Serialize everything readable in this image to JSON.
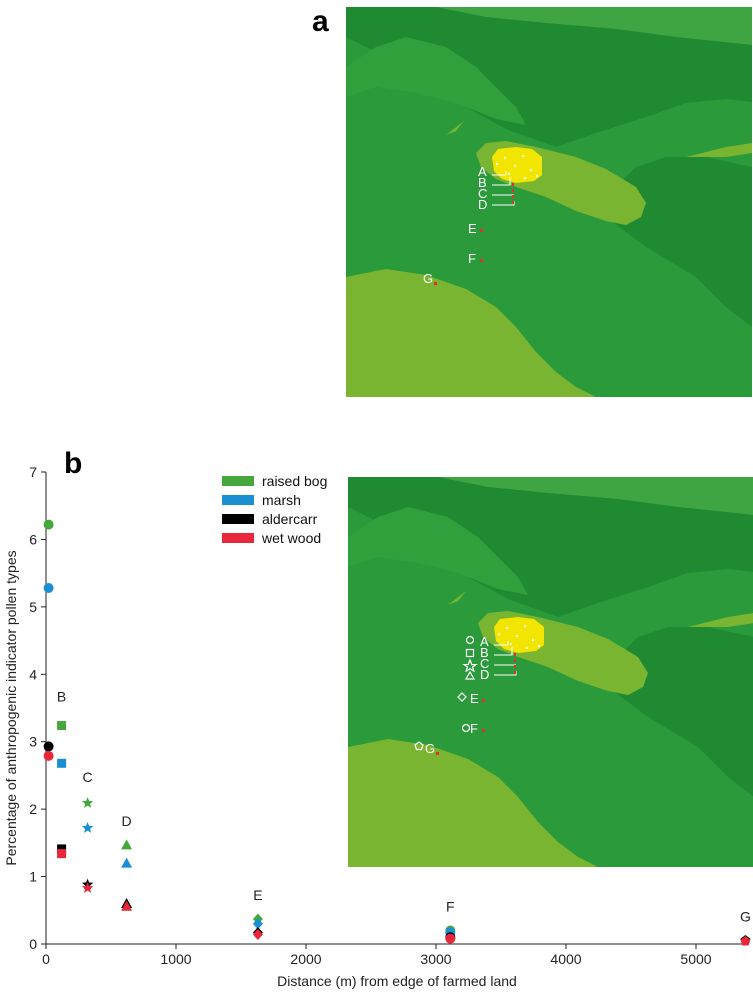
{
  "panels": {
    "a": "a",
    "b": "b"
  },
  "map": {
    "colors": {
      "background": "#2a9a3a",
      "dark": "#1f8a32",
      "light": "#7ab532",
      "mid": "#3fa542",
      "yellow": "#f2e600",
      "dot": "#e53030"
    },
    "site_labels": [
      "A",
      "B",
      "C",
      "D",
      "E",
      "F",
      "G"
    ]
  },
  "chart_data": {
    "type": "scatter",
    "xlabel": "Distance (m) from edge of farmed land",
    "ylabel": "Percentage of anthropogenic indicator pollen types",
    "xlim": [
      0,
      5400
    ],
    "ylim": [
      0,
      7
    ],
    "x_ticks": [
      "0",
      "1000",
      "2000",
      "3000",
      "4000",
      "5000"
    ],
    "y_ticks": [
      "0",
      "1",
      "2",
      "3",
      "4",
      "5",
      "6",
      "7"
    ],
    "grid": false,
    "legend_position": "top-center",
    "site_labels": [
      {
        "label": "B",
        "x": 120,
        "y": 3.6
      },
      {
        "label": "C",
        "x": 320,
        "y": 2.4
      },
      {
        "label": "D",
        "x": 620,
        "y": 1.75
      },
      {
        "label": "E",
        "x": 1630,
        "y": 0.65
      },
      {
        "label": "F",
        "x": 3110,
        "y": 0.48
      },
      {
        "label": "G",
        "x": 5380,
        "y": 0.33
      }
    ],
    "series": [
      {
        "name": "raised bog",
        "color": "#46a83c",
        "points": [
          {
            "x": 20,
            "y": 6.22,
            "marker": "circle"
          },
          {
            "x": 120,
            "y": 3.24,
            "marker": "square"
          },
          {
            "x": 320,
            "y": 2.09,
            "marker": "star"
          },
          {
            "x": 620,
            "y": 1.47,
            "marker": "triangle"
          },
          {
            "x": 1630,
            "y": 0.37,
            "marker": "diamond"
          },
          {
            "x": 3110,
            "y": 0.2,
            "marker": "circle"
          },
          {
            "x": 5380,
            "y": 0.06,
            "marker": "pentagon"
          }
        ]
      },
      {
        "name": "marsh",
        "color": "#1a8fd1",
        "points": [
          {
            "x": 20,
            "y": 5.28,
            "marker": "circle"
          },
          {
            "x": 120,
            "y": 2.68,
            "marker": "square"
          },
          {
            "x": 320,
            "y": 1.72,
            "marker": "star"
          },
          {
            "x": 620,
            "y": 1.2,
            "marker": "triangle"
          },
          {
            "x": 1630,
            "y": 0.3,
            "marker": "diamond"
          },
          {
            "x": 3110,
            "y": 0.17,
            "marker": "circle"
          },
          {
            "x": 5380,
            "y": 0.05,
            "marker": "pentagon"
          }
        ]
      },
      {
        "name": "aldercarr",
        "color": "#000000",
        "points": [
          {
            "x": 20,
            "y": 2.93,
            "marker": "circle"
          },
          {
            "x": 120,
            "y": 1.41,
            "marker": "square"
          },
          {
            "x": 320,
            "y": 0.88,
            "marker": "star"
          },
          {
            "x": 620,
            "y": 0.6,
            "marker": "triangle"
          },
          {
            "x": 1630,
            "y": 0.17,
            "marker": "diamond"
          },
          {
            "x": 3110,
            "y": 0.1,
            "marker": "circle"
          },
          {
            "x": 5380,
            "y": 0.05,
            "marker": "pentagon"
          }
        ]
      },
      {
        "name": "wet wood",
        "color": "#e8283a",
        "points": [
          {
            "x": 20,
            "y": 2.79,
            "marker": "circle"
          },
          {
            "x": 120,
            "y": 1.34,
            "marker": "square"
          },
          {
            "x": 320,
            "y": 0.83,
            "marker": "star"
          },
          {
            "x": 620,
            "y": 0.56,
            "marker": "triangle"
          },
          {
            "x": 1630,
            "y": 0.14,
            "marker": "diamond"
          },
          {
            "x": 3110,
            "y": 0.08,
            "marker": "circle"
          },
          {
            "x": 5380,
            "y": 0.04,
            "marker": "pentagon"
          }
        ]
      }
    ]
  }
}
